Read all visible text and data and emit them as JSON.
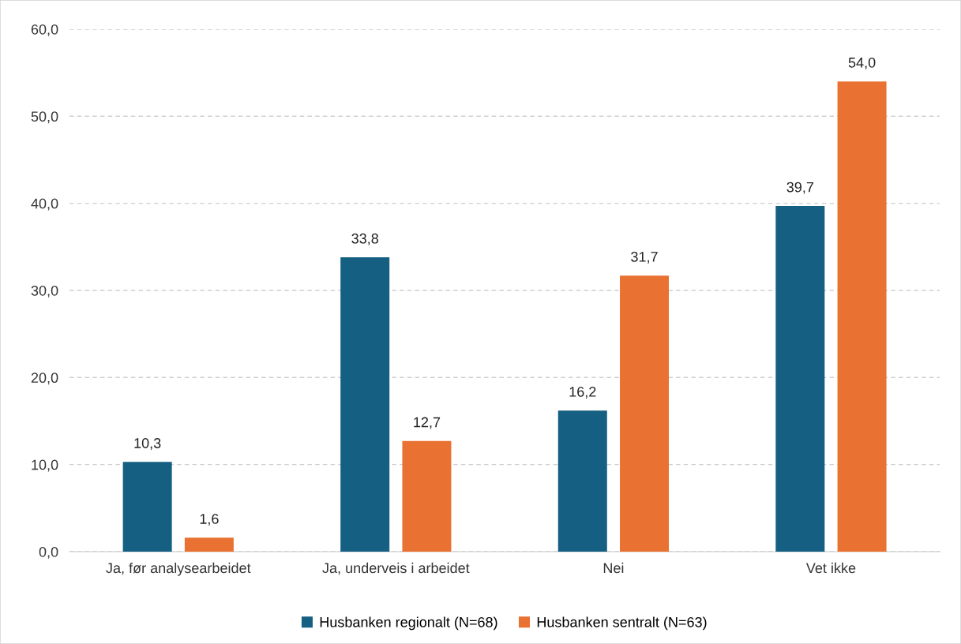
{
  "chart_data": {
    "type": "bar",
    "categories": [
      "Ja, før analysearbeidet",
      "Ja, underveis i arbeidet",
      "Nei",
      "Vet ikke"
    ],
    "series": [
      {
        "name": "Husbanken regionalt (N=68)",
        "color": "#155f82",
        "values": [
          10.3,
          33.8,
          16.2,
          39.7
        ],
        "value_labels": [
          "10,3",
          "33,8",
          "16,2",
          "39,7"
        ]
      },
      {
        "name": "Husbanken sentralt (N=63)",
        "color": "#e97132",
        "values": [
          1.6,
          12.7,
          31.7,
          54.0
        ],
        "value_labels": [
          "1,6",
          "12,7",
          "31,7",
          "54,0"
        ]
      }
    ],
    "ylim": [
      0,
      60
    ],
    "yticks": [
      {
        "value": 0,
        "label": "0,0"
      },
      {
        "value": 10,
        "label": "10,0"
      },
      {
        "value": 20,
        "label": "20,0"
      },
      {
        "value": 30,
        "label": "30,0"
      },
      {
        "value": 40,
        "label": "40,0"
      },
      {
        "value": 50,
        "label": "50,0"
      },
      {
        "value": 60,
        "label": "60,0"
      }
    ],
    "grid": "y",
    "legend": "bottom"
  }
}
